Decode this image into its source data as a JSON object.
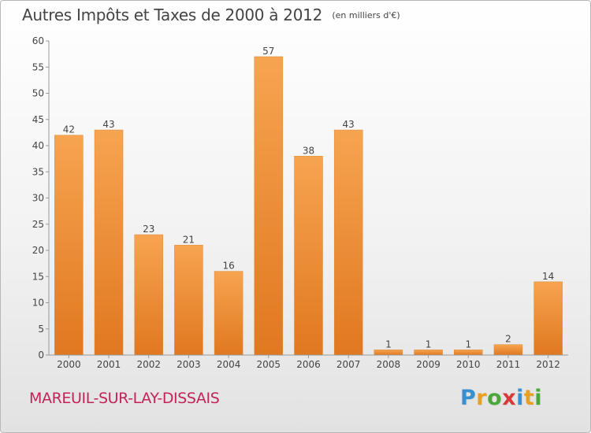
{
  "title": {
    "main": "Autres Impôts et Taxes de 2000 à 2012",
    "sub": "(en milliers d'€)"
  },
  "commune": "MAREUIL-SUR-LAY-DISSAIS",
  "brand": {
    "text": "Proxiti",
    "letters": [
      "P",
      "r",
      "o",
      "x",
      "i",
      "t",
      "i"
    ],
    "colors": [
      "#3a8fd0",
      "#e8a020",
      "#4aa83a",
      "#d83a3a",
      "#3a8fd0",
      "#e8a020",
      "#4aa83a"
    ]
  },
  "colors": {
    "bar_light": "#f7a450",
    "bar_dark": "#e07820",
    "title": "#444444",
    "commune": "#c2245a",
    "axis": "#999999"
  },
  "chart_data": {
    "type": "bar",
    "categories": [
      "2000",
      "2001",
      "2002",
      "2003",
      "2004",
      "2005",
      "2006",
      "2007",
      "2008",
      "2009",
      "2010",
      "2011",
      "2012"
    ],
    "values": [
      42,
      43,
      23,
      21,
      16,
      57,
      38,
      43,
      1,
      1,
      1,
      2,
      14
    ],
    "y_ticks": [
      0,
      5,
      10,
      15,
      20,
      25,
      30,
      35,
      40,
      45,
      50,
      55,
      60
    ],
    "ylim": [
      0,
      60
    ],
    "grid": false,
    "title": "Autres Impôts et Taxes de 2000 à 2012",
    "xlabel": "",
    "ylabel": ""
  }
}
